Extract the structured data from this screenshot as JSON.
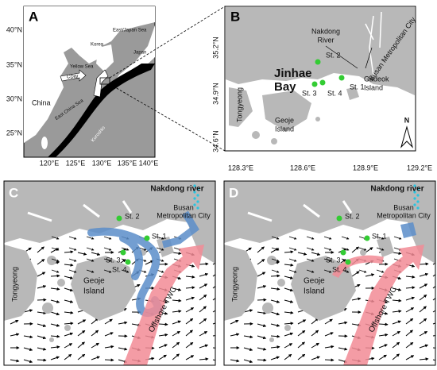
{
  "panel_a": {
    "label": "A",
    "lat_ticks": [
      "40°N",
      "35°N",
      "30°N",
      "25°N"
    ],
    "lon_ticks": [
      "120°E",
      "125°E",
      "130°E",
      "135°E",
      "140°E"
    ],
    "places": {
      "china": "China",
      "yellow_sea": "Yellow Sea",
      "korea": "Korea",
      "east_sea": "East/Japan Sea",
      "japan": "Japan",
      "ecs": "East China Sea",
      "kuroshio": "Kuroshio",
      "cdw": "CDW"
    }
  },
  "panel_b": {
    "label": "B",
    "lat_ticks": [
      "35.2°N",
      "34.9°N",
      "34.6°N"
    ],
    "lon_ticks": [
      "128.3°E",
      "128.6°E",
      "128.9°E",
      "129.2°E"
    ],
    "nakdong": [
      "Nakdong",
      "River"
    ],
    "busan": "Busan Metropolitan City",
    "bay": [
      "Jinhae",
      "Bay"
    ],
    "stations": [
      "St. 1",
      "St. 2",
      "St. 3",
      "St. 4"
    ],
    "gadeok": [
      "Gadeok",
      "Island"
    ],
    "geoje": [
      "Geoje",
      "Island"
    ],
    "tongyeong": "Tongyeong",
    "north": "N"
  },
  "panel_c": {
    "label": "C",
    "nakdong": "Nakdong river",
    "busan": [
      "Busan",
      "Metropolitan City"
    ],
    "stations": [
      "St. 1",
      "St. 2",
      "St. 3",
      "St. 4"
    ],
    "tongyeong": "Tongyeong",
    "geoje": [
      "Geoje",
      "Island"
    ],
    "current": "Offshore TWC"
  },
  "panel_d": {
    "label": "D",
    "nakdong": "Nakdong river",
    "busan": [
      "Busan",
      "Metropolitan City"
    ],
    "stations": [
      "St. 1",
      "St. 2",
      "St. 3",
      "St. 4"
    ],
    "tongyeong": "Tongyeong",
    "geoje": [
      "Geoje",
      "Island"
    ],
    "current": "Offshore TWC"
  }
}
